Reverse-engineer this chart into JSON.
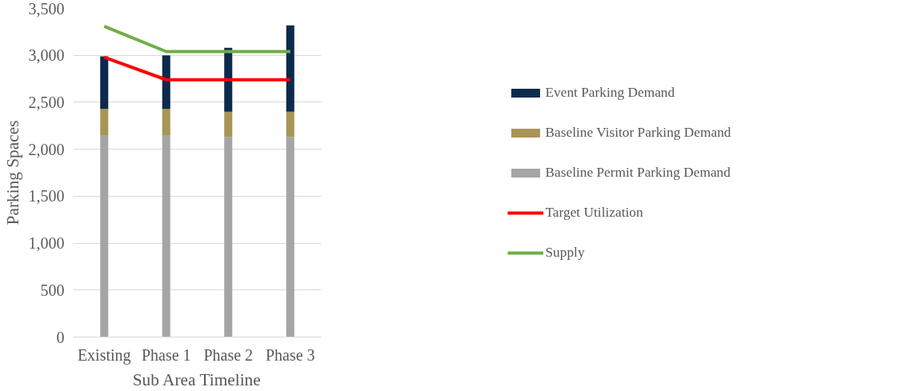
{
  "chart_data": {
    "type": "bar",
    "stacked": true,
    "xlabel": "Sub Area Timeline",
    "ylabel": "Parking Spaces",
    "categories": [
      "Existing",
      "Phase 1",
      "Phase 2",
      "Phase 3"
    ],
    "series": [
      {
        "name": "Baseline Permit Parking Demand",
        "color": "#a5a5a5",
        "values": [
          2150,
          2150,
          2130,
          2130
        ]
      },
      {
        "name": "Baseline Visitor Parking Demand",
        "color": "#a89556",
        "values": [
          280,
          280,
          270,
          270
        ]
      },
      {
        "name": "Event Parking Demand",
        "color": "#0c2a4c",
        "values": [
          560,
          570,
          680,
          920
        ]
      },
      {
        "name": "Target Utilization",
        "type": "line",
        "color": "#ff0000",
        "values": [
          2980,
          2740,
          2740,
          2740
        ]
      },
      {
        "name": "Supply",
        "type": "line",
        "color": "#70ad47",
        "values": [
          3310,
          3040,
          3040,
          3040
        ]
      }
    ],
    "ylim": [
      0,
      3500
    ],
    "yticks": [
      {
        "value": 0,
        "label": "0"
      },
      {
        "value": 500,
        "label": "500"
      },
      {
        "value": 1000,
        "label": "1,000"
      },
      {
        "value": 1500,
        "label": "1,500"
      },
      {
        "value": 2000,
        "label": "2,000"
      },
      {
        "value": 2500,
        "label": "2,500"
      },
      {
        "value": 3000,
        "label": "3,000"
      },
      {
        "value": 3500,
        "label": "3,500"
      }
    ],
    "grid": "y",
    "legend": "right"
  }
}
